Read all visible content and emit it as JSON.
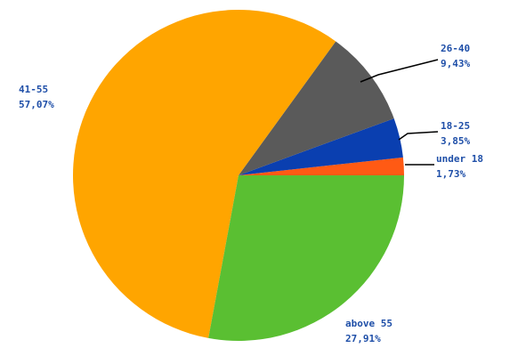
{
  "chart_data": {
    "type": "pie",
    "slices": [
      {
        "label": "under 18",
        "value": 1.73,
        "value_text": "1,73%",
        "color": "#ff5a14"
      },
      {
        "label": "18-25",
        "value": 3.85,
        "value_text": "3,85%",
        "color": "#0a3fb0"
      },
      {
        "label": "26-40",
        "value": 9.43,
        "value_text": "9,43%",
        "color": "#5a5a5a"
      },
      {
        "label": "41-55",
        "value": 57.07,
        "value_text": "57,07%",
        "color": "#ffa500"
      },
      {
        "label": "above 55",
        "value": 27.91,
        "value_text": "27,91%",
        "color": "#5abf32"
      }
    ],
    "title": "",
    "legend": "none"
  }
}
